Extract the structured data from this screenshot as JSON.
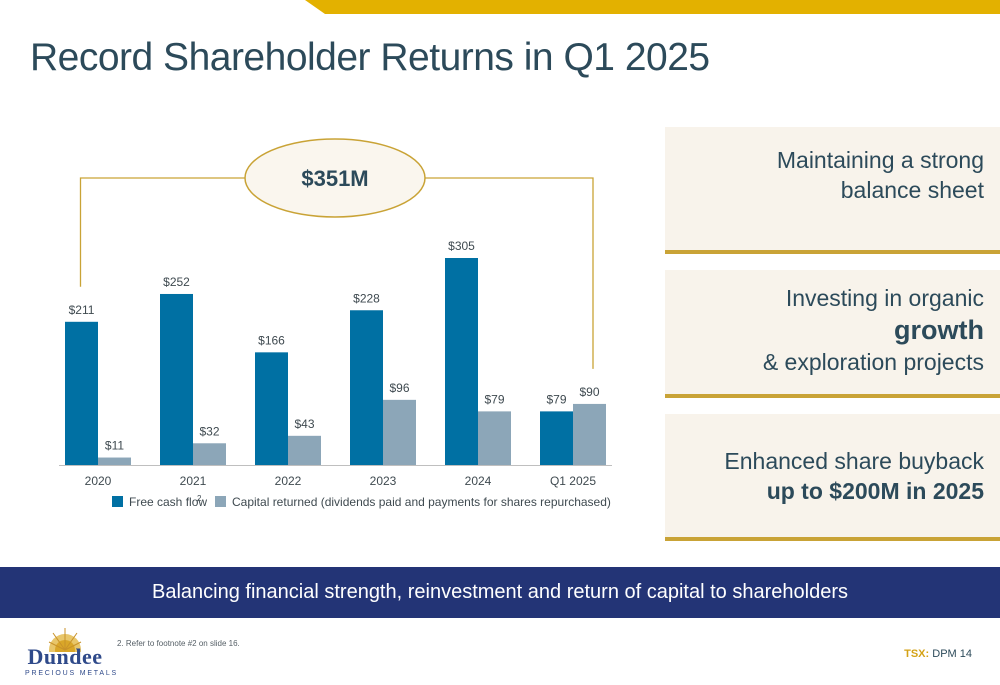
{
  "slide": {
    "title": "Record Shareholder Returns in Q1 2025",
    "accent_color": "#e3b100",
    "banner_text": "Balancing financial strength, reinvestment and return of capital to shareholders",
    "banner_color": "#233476",
    "footnote": "2. Refer to footnote #2 on slide 16.",
    "ticker_label": "TSX:",
    "ticker_value": "DPM 14",
    "logo_name": "Dundee",
    "logo_subtitle": "PRECIOUS METALS"
  },
  "panels": [
    {
      "lines": [
        {
          "text": "Maintaining a strong",
          "style": "normal"
        },
        {
          "text": "balance sheet",
          "style": "normal"
        }
      ]
    },
    {
      "lines": [
        {
          "text": "Investing in organic",
          "style": "normal"
        },
        {
          "text": "growth",
          "style": "bold-large"
        },
        {
          "text": "& exploration projects",
          "style": "normal"
        }
      ]
    },
    {
      "lines": [
        {
          "text": "Enhanced share buyback",
          "style": "normal"
        },
        {
          "text": "up to $200M in 2025",
          "style": "bold"
        }
      ]
    }
  ],
  "chart_data": {
    "type": "bar",
    "categories": [
      "2020",
      "2021",
      "2022",
      "2023",
      "2024",
      "Q1 2025"
    ],
    "series": [
      {
        "name": "Free cash flow",
        "superscript": "2",
        "color": "#0070a3",
        "values": [
          211,
          252,
          166,
          228,
          305,
          79
        ],
        "labels": [
          "$211",
          "$252",
          "$166",
          "$228",
          "$305",
          "$79"
        ]
      },
      {
        "name": "Capital returned (dividends paid and payments for shares repurchased)",
        "color": "#8ca6b8",
        "values": [
          11,
          32,
          43,
          96,
          79,
          90
        ],
        "labels": [
          "$11",
          "$32",
          "$43",
          "$96",
          "$79",
          "$90"
        ]
      }
    ],
    "total_callout": "$351M",
    "ylim": [
      0,
      305
    ],
    "legend_position": "bottom",
    "grid": false
  }
}
